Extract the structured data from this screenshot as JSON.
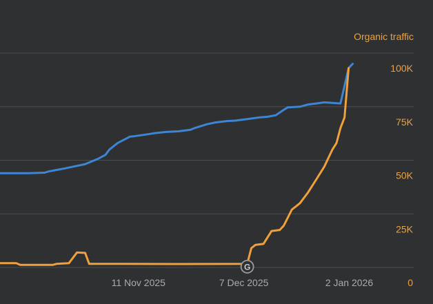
{
  "chart_data": {
    "type": "line",
    "title": "",
    "y_axis_label": "Organic traffic",
    "y_axis_position": "right",
    "y_ticks": [
      {
        "value": 0,
        "label": "0"
      },
      {
        "value": 25000,
        "label": "25K"
      },
      {
        "value": 50000,
        "label": "50K"
      },
      {
        "value": 75000,
        "label": "75K"
      },
      {
        "value": 100000,
        "label": "100K"
      }
    ],
    "ylim": [
      0,
      100000
    ],
    "x_range_days": [
      0,
      91
    ],
    "x_ticks": [
      {
        "day": 35,
        "label": "11 Nov 2025"
      },
      {
        "day": 61,
        "label": "7 Dec 2025"
      },
      {
        "day": 87,
        "label": "2 Jan 2026"
      }
    ],
    "grid": true,
    "annotations": [
      {
        "day": 61,
        "value": 1000,
        "icon": "google-update-marker",
        "label": "G"
      }
    ],
    "series": [
      {
        "name": "series-blue",
        "color": "#3d86d6",
        "points": [
          [
            0,
            44000
          ],
          [
            7,
            44000
          ],
          [
            11,
            44200
          ],
          [
            12,
            44800
          ],
          [
            14,
            45500
          ],
          [
            16,
            46200
          ],
          [
            18,
            47000
          ],
          [
            21,
            48200
          ],
          [
            24,
            50500
          ],
          [
            26,
            52500
          ],
          [
            27,
            55000
          ],
          [
            29,
            58000
          ],
          [
            31,
            60000
          ],
          [
            32,
            61000
          ],
          [
            33,
            61200
          ],
          [
            36,
            62000
          ],
          [
            38,
            62600
          ],
          [
            41,
            63200
          ],
          [
            44,
            63500
          ],
          [
            47,
            64200
          ],
          [
            48,
            65000
          ],
          [
            51,
            66800
          ],
          [
            53,
            67600
          ],
          [
            56,
            68300
          ],
          [
            58,
            68500
          ],
          [
            61,
            69200
          ],
          [
            64,
            70000
          ],
          [
            66,
            70300
          ],
          [
            68,
            71000
          ],
          [
            70,
            73500
          ],
          [
            71,
            74700
          ],
          [
            74,
            75000
          ],
          [
            76,
            76000
          ],
          [
            78,
            76500
          ],
          [
            80,
            77000
          ],
          [
            82,
            76800
          ],
          [
            84,
            76500
          ],
          [
            86,
            93000
          ],
          [
            87,
            95000
          ]
        ]
      },
      {
        "name": "series-orange",
        "color": "#f0a13b",
        "points": [
          [
            0,
            2000
          ],
          [
            4,
            2000
          ],
          [
            5,
            1200
          ],
          [
            13,
            1200
          ],
          [
            14,
            1700
          ],
          [
            17,
            2000
          ],
          [
            19,
            7000
          ],
          [
            21,
            6800
          ],
          [
            22,
            1700
          ],
          [
            23,
            1700
          ],
          [
            30,
            1700
          ],
          [
            45,
            1600
          ],
          [
            61,
            1700
          ],
          [
            62,
            9000
          ],
          [
            63,
            10500
          ],
          [
            65,
            11000
          ],
          [
            67,
            17000
          ],
          [
            69,
            17500
          ],
          [
            70,
            19500
          ],
          [
            72,
            27000
          ],
          [
            73,
            28500
          ],
          [
            74,
            30000
          ],
          [
            76,
            35000
          ],
          [
            78,
            41000
          ],
          [
            80,
            47000
          ],
          [
            82,
            55000
          ],
          [
            83,
            58000
          ],
          [
            84,
            65000
          ],
          [
            85,
            70000
          ],
          [
            86,
            93000
          ]
        ]
      }
    ]
  }
}
